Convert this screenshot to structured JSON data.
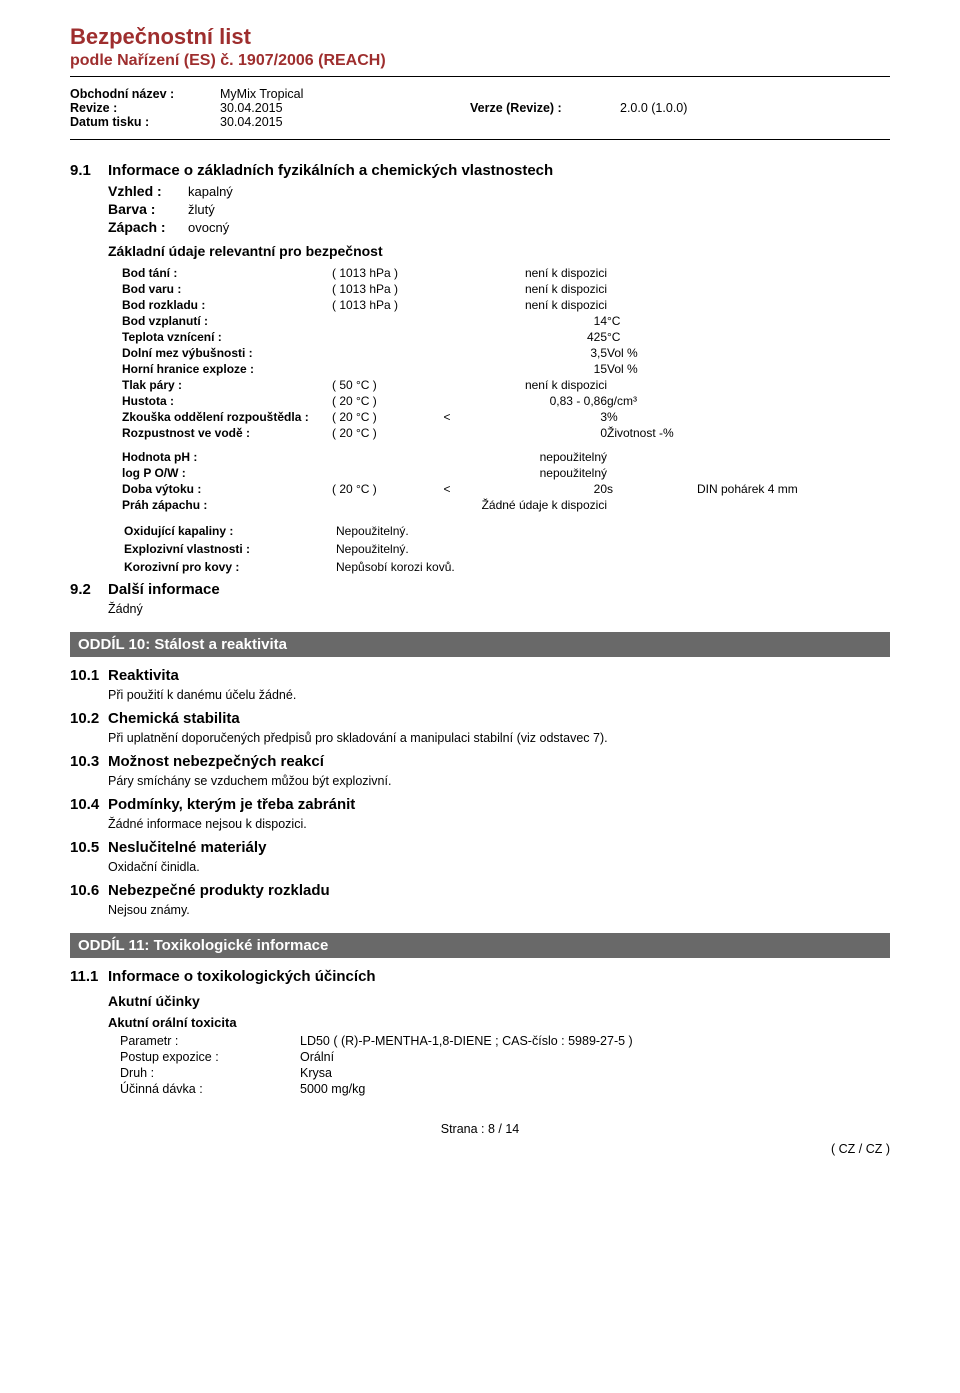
{
  "header": {
    "title": "Bezpečnostní list",
    "subtitle": "podle Nařízení (ES) č. 1907/2006 (REACH)",
    "rows": [
      {
        "label": "Obchodní název :",
        "val": "MyMix Tropical",
        "label2": "",
        "val2": ""
      },
      {
        "label": "Revize :",
        "val": "30.04.2015",
        "label2": "Verze (Revize) :",
        "val2": "2.0.0 (1.0.0)"
      },
      {
        "label": "Datum tisku :",
        "val": "30.04.2015",
        "label2": "",
        "val2": ""
      }
    ]
  },
  "sec91": {
    "num": "9.1",
    "title": "Informace o základních fyzikálních a chemických vlastnostech",
    "props": [
      {
        "label": "Vzhled :",
        "val": "kapalný"
      },
      {
        "label": "Barva :",
        "val": "žlutý"
      },
      {
        "label": "Zápach :",
        "val": "ovocný"
      }
    ],
    "sub_h": "Základní údaje relevantní pro bezpečnost",
    "rows": [
      {
        "label": "Bod tání :",
        "cond": "( 1013 hPa )",
        "cmp": "",
        "val": "není k dispozici",
        "unit": "",
        "extra": "",
        "align": "right"
      },
      {
        "label": "Bod varu :",
        "cond": "( 1013 hPa )",
        "cmp": "",
        "val": "není k dispozici",
        "unit": "",
        "extra": "",
        "align": "right"
      },
      {
        "label": "Bod rozkladu :",
        "cond": "( 1013 hPa )",
        "cmp": "",
        "val": "není k dispozici",
        "unit": "",
        "extra": "",
        "align": "right"
      },
      {
        "label": "Bod vzplanutí :",
        "cond": "",
        "cmp": "",
        "val": "14",
        "unit": "°C",
        "extra": "",
        "align": "right"
      },
      {
        "label": "Teplota vznícení :",
        "cond": "",
        "cmp": "",
        "val": "425",
        "unit": "°C",
        "extra": "",
        "align": "right"
      },
      {
        "label": "Dolní mez výbušnosti :",
        "cond": "",
        "cmp": "",
        "val": "3,5",
        "unit": "Vol %",
        "extra": "",
        "align": "right"
      },
      {
        "label": "Horní hranice exploze :",
        "cond": "",
        "cmp": "",
        "val": "15",
        "unit": "Vol %",
        "extra": "",
        "align": "right"
      },
      {
        "label": "Tlak páry :",
        "cond": "( 50 °C )",
        "cmp": "",
        "val": "není k dispozici",
        "unit": "",
        "extra": "",
        "align": "right"
      },
      {
        "label": "Hustota :",
        "cond": "( 20 °C )",
        "cmp": "",
        "val": "0,83 - 0,86",
        "unit": "g/cm³",
        "extra": "",
        "align": "right"
      },
      {
        "label": "Zkouška oddělení rozpouštědla :",
        "cond": "( 20 °C )",
        "cmp": "<",
        "val": "3",
        "unit": "%",
        "extra": "",
        "align": "right"
      },
      {
        "label": "Rozpustnost ve vodě :",
        "cond": "( 20 °C )",
        "cmp": "",
        "val": "0",
        "unit": "Životnost -%",
        "extra": "",
        "align": "right"
      },
      {
        "label": "Hodnota pH :",
        "cond": "",
        "cmp": "",
        "val": "nepoužitelný",
        "unit": "",
        "extra": "",
        "align": "right"
      },
      {
        "label": "log P O/W :",
        "cond": "",
        "cmp": "",
        "val": "nepoužitelný",
        "unit": "",
        "extra": "",
        "align": "right"
      },
      {
        "label": "Doba výtoku :",
        "cond": "( 20 °C )",
        "cmp": "<",
        "val": "20",
        "unit": "s",
        "extra": "DIN pohárek 4 mm",
        "align": "right"
      },
      {
        "label": "Práh zápachu :",
        "cond": "",
        "cmp": "",
        "val": "Žádné údaje k dispozici",
        "unit": "",
        "extra": "",
        "align": "right"
      }
    ],
    "pairs": [
      {
        "label": "Oxidující kapaliny :",
        "val": "Nepoužitelný."
      },
      {
        "label": "Explozivní vlastnosti :",
        "val": "Nepoužitelný."
      },
      {
        "label": "Korozivní pro kovy :",
        "val": "Nepůsobí korozi kovů."
      }
    ]
  },
  "sec92": {
    "num": "9.2",
    "title": "Další informace",
    "body": "Žádný"
  },
  "oddil10": {
    "title": "ODDÍL 10: Stálost a reaktivita",
    "items": [
      {
        "num": "10.1",
        "h": "Reaktivita",
        "body": "Při použití k danému účelu žádné."
      },
      {
        "num": "10.2",
        "h": "Chemická stabilita",
        "body": "Při uplatnění doporučených předpisů pro skladování a manipulaci stabilní (viz odstavec 7)."
      },
      {
        "num": "10.3",
        "h": "Možnost nebezpečných reakcí",
        "body": "Páry smíchány se vzduchem můžou být explozivní."
      },
      {
        "num": "10.4",
        "h": "Podmínky, kterým je třeba zabránit",
        "body": "Žádné informace nejsou k dispozici."
      },
      {
        "num": "10.5",
        "h": "Neslučitelné materiály",
        "body": "Oxidační činidla."
      },
      {
        "num": "10.6",
        "h": "Nebezpečné produkty rozkladu",
        "body": "Nejsou známy."
      }
    ]
  },
  "oddil11": {
    "title": "ODDÍL 11: Toxikologické informace",
    "num": "11.1",
    "h": "Informace o toxikologických účincích",
    "sub1": "Akutní účinky",
    "sub2": "Akutní orální toxicita",
    "params": [
      {
        "label": "Parametr :",
        "val": "LD50 ( (R)-P-MENTHA-1,8-DIENE ; CAS-číslo : 5989-27-5 )"
      },
      {
        "label": "Postup expozice :",
        "val": "Orální"
      },
      {
        "label": "Druh :",
        "val": "Krysa"
      },
      {
        "label": "Účinná dávka :",
        "val": "5000 mg/kg"
      }
    ]
  },
  "footer": {
    "page": "Strana : 8 / 14",
    "cz": "( CZ / CZ )"
  },
  "colors": {
    "accent": "#9e2e2e",
    "oddil_bg": "#696969",
    "oddil_fg": "#ffffff",
    "text": "#000000",
    "bg": "#ffffff"
  }
}
